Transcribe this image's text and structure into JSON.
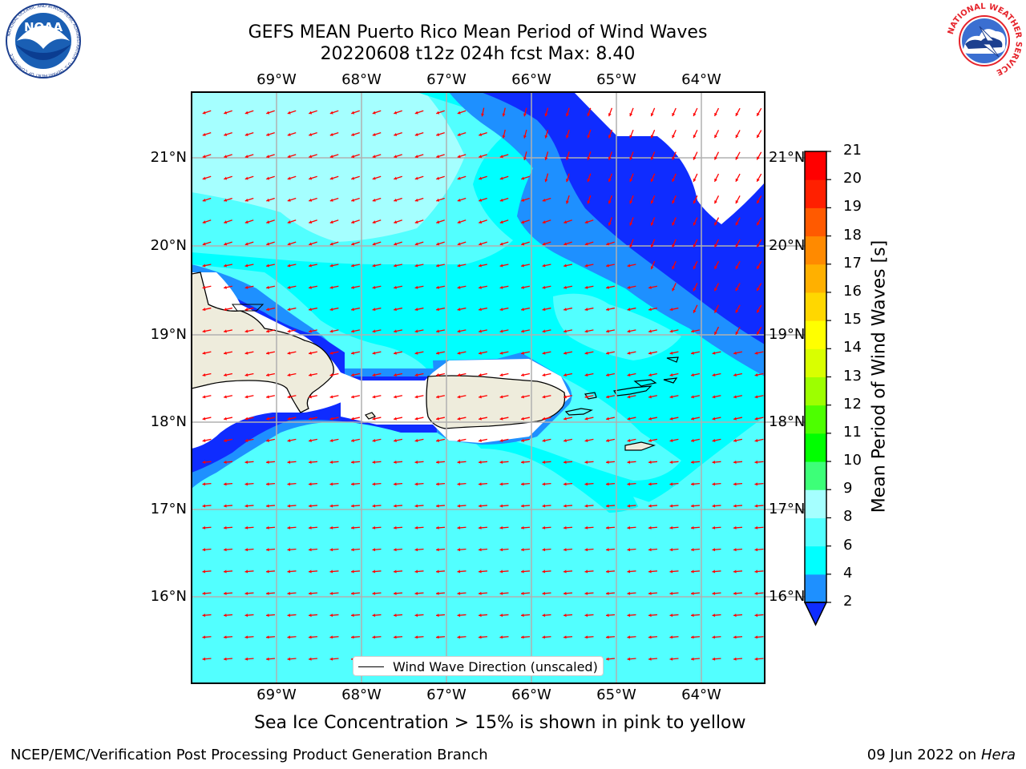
{
  "title": {
    "line1": "GEFS MEAN Puerto Rico Mean Period of Wind Waves",
    "line2": "20220608 t12z 024h fcst   Max: 8.40"
  },
  "logos": {
    "left": "NOAA",
    "left_ring_text": "NATIONAL OCEANIC AND ATMOSPHERIC ADMINISTRATION · U.S. DEPARTMENT OF COMMERCE",
    "right_ring_text": "NATIONAL WEATHER SERVICE"
  },
  "map": {
    "lon_labels": [
      "69°W",
      "68°W",
      "67°W",
      "66°W",
      "65°W",
      "64°W"
    ],
    "lat_labels": [
      "21°N",
      "20°N",
      "19°N",
      "18°N",
      "17°N",
      "16°N"
    ],
    "legend_text": "Wind Wave Direction (unscaled)",
    "arrow_color": "#ff0000",
    "land_color": "#eeecdc"
  },
  "colorbar": {
    "title": "Mean Period of Wind Waves [s]",
    "ticks": [
      "2",
      "4",
      "6",
      "8",
      "9",
      "10",
      "11",
      "12",
      "13",
      "14",
      "15",
      "16",
      "17",
      "18",
      "19",
      "20",
      "21"
    ],
    "colors": [
      "#0f2cff",
      "#1e90ff",
      "#00ffff",
      "#52ffff",
      "#a5ffff",
      "#3dff78",
      "#00ff00",
      "#4dff00",
      "#9dff00",
      "#d9ff00",
      "#ffff00",
      "#ffd700",
      "#ffb000",
      "#ff8a00",
      "#ff5a00",
      "#ff2000",
      "#ff0000"
    ]
  },
  "note": "Sea Ice Concentration > 15% is shown in pink to yellow",
  "footer": {
    "left": "NCEP/EMC/Verification Post Processing Product Generation Branch",
    "date": "09 Jun 2022 on ",
    "host": "Hera"
  }
}
